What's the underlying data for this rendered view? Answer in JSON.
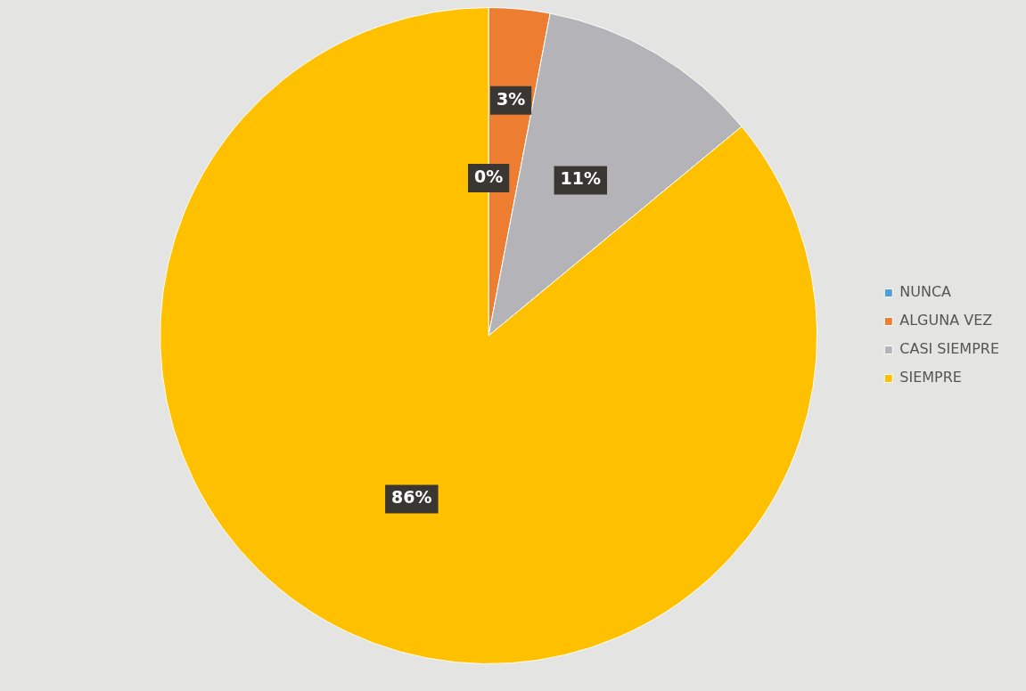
{
  "chart_data": {
    "type": "pie",
    "categories": [
      "NUNCA",
      "ALGUNA VEZ",
      "CASI SIEMPRE",
      "SIEMPRE"
    ],
    "values": [
      0,
      3,
      11,
      86
    ],
    "colors": [
      "#4f9fd6",
      "#ed7d31",
      "#b4b4b8",
      "#ffc000"
    ],
    "value_labels": [
      "0%",
      "3%",
      "11%",
      "86%"
    ],
    "legend": "right"
  }
}
